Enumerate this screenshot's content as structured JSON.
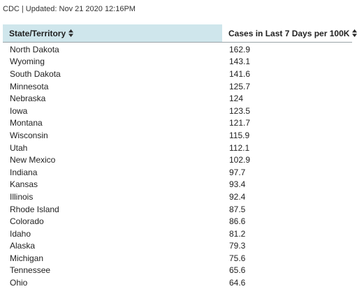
{
  "source": "CDC | Updated: Nov 21 2020 12:16PM",
  "table": {
    "columns": [
      "State/Territory",
      "Cases in Last 7 Days per 100K"
    ],
    "rows": [
      [
        "North Dakota",
        "162.9"
      ],
      [
        "Wyoming",
        "143.1"
      ],
      [
        "South Dakota",
        "141.6"
      ],
      [
        "Minnesota",
        "125.7"
      ],
      [
        "Nebraska",
        "124"
      ],
      [
        "Iowa",
        "123.5"
      ],
      [
        "Montana",
        "121.7"
      ],
      [
        "Wisconsin",
        "115.9"
      ],
      [
        "Utah",
        "112.1"
      ],
      [
        "New Mexico",
        "102.9"
      ],
      [
        "Indiana",
        "97.7"
      ],
      [
        "Kansas",
        "93.4"
      ],
      [
        "Illinois",
        "92.4"
      ],
      [
        "Rhode Island",
        "87.5"
      ],
      [
        "Colorado",
        "86.6"
      ],
      [
        "Idaho",
        "81.2"
      ],
      [
        "Alaska",
        "79.3"
      ],
      [
        "Michigan",
        "75.6"
      ],
      [
        "Tennessee",
        "65.6"
      ],
      [
        "Ohio",
        "64.6"
      ]
    ]
  },
  "colors": {
    "header_highlight": "#cfe6ec",
    "text": "#222222"
  },
  "icons": {
    "sort": "sort-icon"
  }
}
